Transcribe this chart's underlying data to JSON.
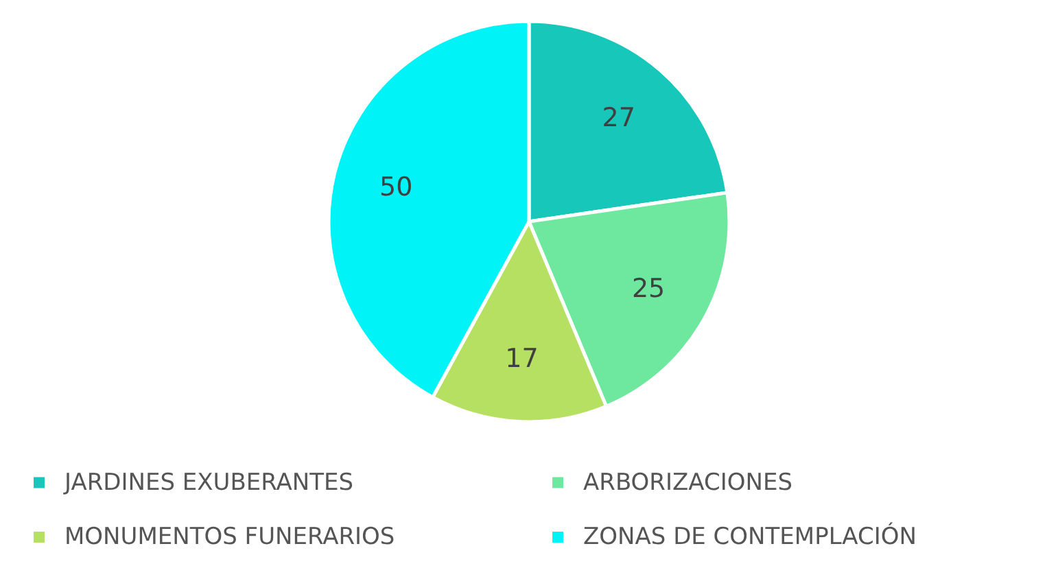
{
  "chart_data": {
    "type": "pie",
    "categories": [
      "JARDINES EXUBERANTES",
      "ARBORIZACIONES",
      "MONUMENTOS FUNERARIOS",
      "ZONAS DE CONTEMPLACIÓN"
    ],
    "values": [
      27,
      25,
      17,
      50
    ],
    "colors": [
      "#17c7b9",
      "#6ee89f",
      "#b6e061",
      "#00f3f7"
    ],
    "data_labels": true,
    "legend": "bottom"
  }
}
